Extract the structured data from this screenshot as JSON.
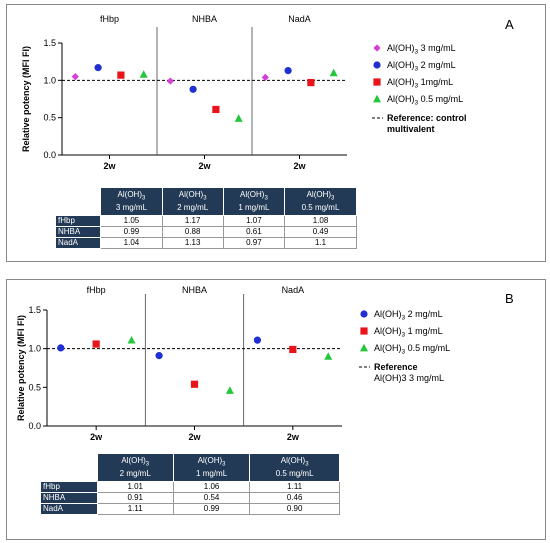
{
  "panels": [
    {
      "letter": "A",
      "ylabel": "Relative potency (MFI FI)",
      "yticks": [
        "0.0",
        "0.5",
        "1.0",
        "1.5"
      ],
      "antigens": [
        "fHbp",
        "NHBA",
        "NadA"
      ],
      "xlabel": "2w",
      "legend": [
        {
          "base": "Al(OH)",
          "sub": "3",
          "rest": " 3 mg/mL",
          "color": "#d63fd6",
          "marker": "diamond"
        },
        {
          "base": "Al(OH)",
          "sub": "3",
          "rest": " 2 mg/mL",
          "color": "#1f2fd1",
          "marker": "circle"
        },
        {
          "base": "Al(OH)",
          "sub": "3",
          "rest": " 1mg/mL",
          "color": "#e8141a",
          "marker": "square"
        },
        {
          "base": "Al(OH)",
          "sub": "3",
          "rest": " 0.5 mg/mL",
          "color": "#22c83a",
          "marker": "triangle"
        }
      ],
      "ref_line1": "Reference: control",
      "ref_line2": "multivalent",
      "table": {
        "headers": [
          {
            "base": "Al(OH)",
            "sub": "3",
            "line2": "3 mg/mL"
          },
          {
            "base": "Al(OH)",
            "sub": "3",
            "line2": "2 mg/mL"
          },
          {
            "base": "Al(OH)",
            "sub": "3",
            "line2": "1 mg/mL"
          },
          {
            "base": "Al(OH)",
            "sub": "3",
            "line2": "0.5 mg/mL"
          }
        ],
        "rows": [
          {
            "label": "fHbp",
            "cells": [
              "1.05",
              "1.17",
              "1.07",
              "1.08"
            ]
          },
          {
            "label": "NHBA",
            "cells": [
              "0.99",
              "0.88",
              "0.61",
              "0.49"
            ]
          },
          {
            "label": "NadA",
            "cells": [
              "1.04",
              "1.13",
              "0.97",
              "1.1"
            ]
          }
        ]
      }
    },
    {
      "letter": "B",
      "ylabel": "Relative potency (MFI FI)",
      "yticks": [
        "0.0",
        "0.5",
        "1.0",
        "1.5"
      ],
      "antigens": [
        "fHbp",
        "NHBA",
        "NadA"
      ],
      "xlabel": "2w",
      "legend": [
        {
          "base": "Al(OH)",
          "sub": "3",
          "rest": " 2 mg/mL",
          "color": "#1f2fd1",
          "marker": "circle"
        },
        {
          "base": "Al(OH)",
          "sub": "3",
          "rest": " 1 mg/mL",
          "color": "#e8141a",
          "marker": "square"
        },
        {
          "base": "Al(OH)",
          "sub": "3",
          "rest": " 0.5 mg/mL",
          "color": "#22c83a",
          "marker": "triangle"
        }
      ],
      "ref_line1": "Reference",
      "ref_line2": "Al(OH)3 3 mg/mL",
      "table": {
        "headers": [
          {
            "base": "Al(OH)",
            "sub": "3",
            "line2": "2 mg/mL"
          },
          {
            "base": "Al(OH)",
            "sub": "3",
            "line2": "1 mg/mL"
          },
          {
            "base": "Al(OH)",
            "sub": "3",
            "line2": "0.5 mg/mL"
          }
        ],
        "rows": [
          {
            "label": "fHbp",
            "cells": [
              "1.01",
              "1.06",
              "1.11"
            ]
          },
          {
            "label": "NHBA",
            "cells": [
              "0.91",
              "0.54",
              "0.46"
            ]
          },
          {
            "label": "NadA",
            "cells": [
              "1.11",
              "0.99",
              "0.90"
            ]
          }
        ]
      }
    }
  ],
  "chart_data": [
    {
      "type": "scatter",
      "ylabel": "Relative potency (MFI FI)",
      "ylim": [
        0,
        1.5
      ],
      "yticks": [
        0,
        0.5,
        1.0,
        1.5
      ],
      "groups": [
        "fHbp",
        "NHBA",
        "NadA"
      ],
      "x_label": "2w",
      "reference_y": 1.0,
      "grid": false,
      "legend_position": "right",
      "series": [
        {
          "name": "Al(OH)3 3 mg/mL",
          "values": [
            1.05,
            0.99,
            1.04
          ]
        },
        {
          "name": "Al(OH)3 2 mg/mL",
          "values": [
            1.17,
            0.88,
            1.13
          ]
        },
        {
          "name": "Al(OH)3 1mg/mL",
          "values": [
            1.07,
            0.61,
            0.97
          ]
        },
        {
          "name": "Al(OH)3 0.5 mg/mL",
          "values": [
            1.08,
            0.49,
            1.1
          ]
        }
      ]
    },
    {
      "type": "scatter",
      "ylabel": "Relative potency (MFI FI)",
      "ylim": [
        0,
        1.5
      ],
      "yticks": [
        0,
        0.5,
        1.0,
        1.5
      ],
      "groups": [
        "fHbp",
        "NHBA",
        "NadA"
      ],
      "x_label": "2w",
      "reference_y": 1.0,
      "grid": false,
      "legend_position": "right",
      "series": [
        {
          "name": "Al(OH)3 2 mg/mL",
          "values": [
            1.01,
            0.91,
            1.11
          ]
        },
        {
          "name": "Al(OH)3 1 mg/mL",
          "values": [
            1.06,
            0.54,
            0.99
          ]
        },
        {
          "name": "Al(OH)3 0.5 mg/mL",
          "values": [
            1.11,
            0.46,
            0.9
          ]
        }
      ]
    }
  ]
}
